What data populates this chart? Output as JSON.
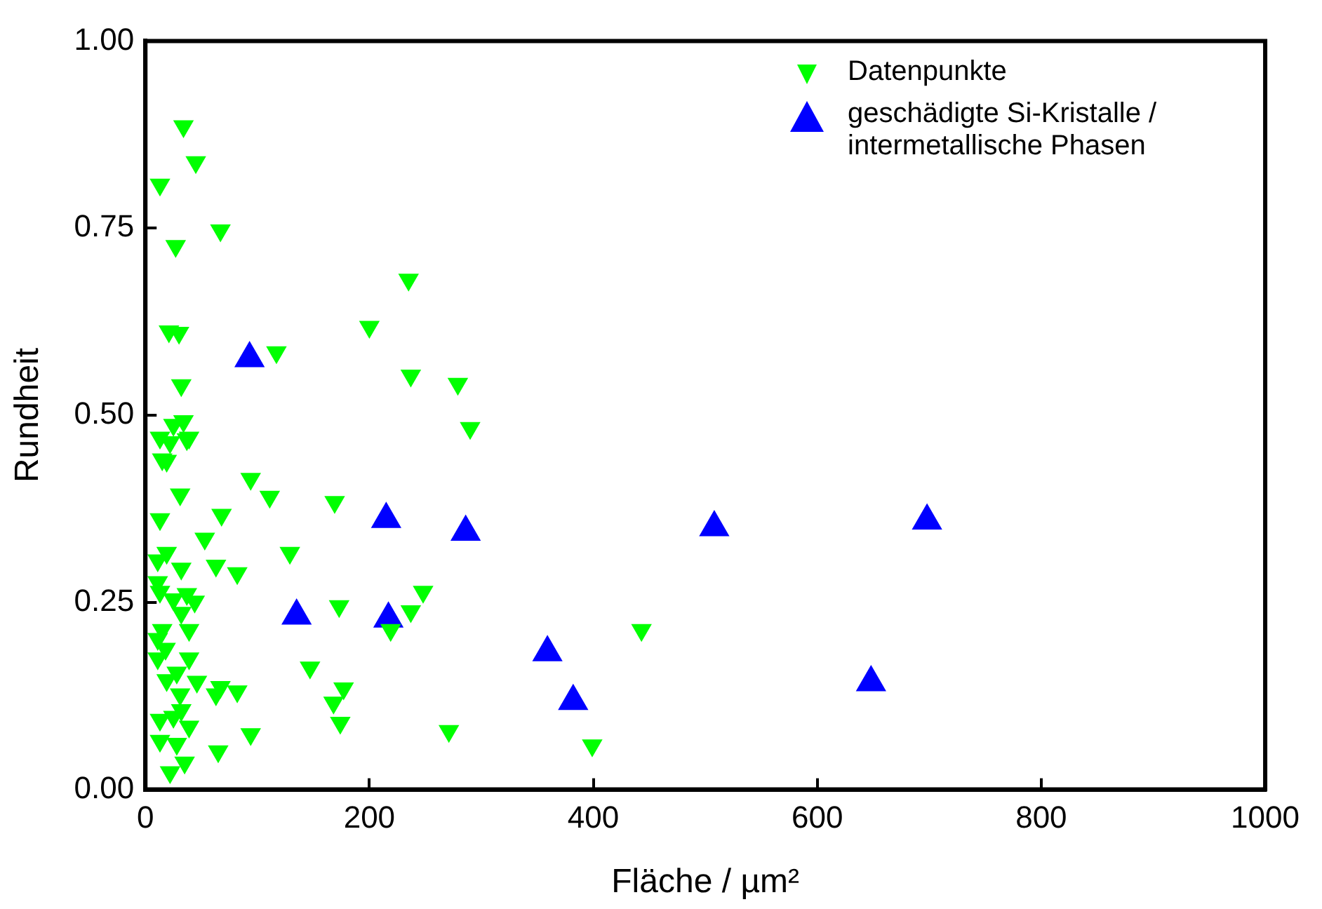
{
  "chart_data": {
    "type": "scatter",
    "xlabel": "Fläche / µm²",
    "ylabel": "Rundheit",
    "xlim": [
      0,
      1000
    ],
    "ylim": [
      0,
      1
    ],
    "xticks": [
      0,
      200,
      400,
      600,
      800,
      1000
    ],
    "yticks": [
      {
        "value": 0,
        "label": "0.00"
      },
      {
        "value": 0.25,
        "label": "0.25"
      },
      {
        "value": 0.5,
        "label": "0.50"
      },
      {
        "value": 0.75,
        "label": "0.75"
      },
      {
        "value": 1,
        "label": "1.00"
      }
    ],
    "grid": false,
    "legend": "top right",
    "marker": "triangle",
    "series": [
      {
        "name": "Datenpunkte",
        "color": "#00ff00",
        "x": [
          34,
          45,
          13,
          67,
          27,
          235,
          21,
          30,
          200,
          117,
          32,
          237,
          279,
          290,
          34,
          25,
          13,
          39,
          22,
          37,
          19,
          15,
          94,
          31,
          111,
          169,
          13,
          68,
          53,
          129,
          19,
          11,
          32,
          63,
          82,
          11,
          13,
          37,
          25,
          44,
          32,
          173,
          248,
          237,
          219,
          15,
          39,
          11,
          18,
          11,
          39,
          147,
          28,
          19,
          46,
          67,
          82,
          177,
          63,
          31,
          168,
          32,
          13,
          25,
          39,
          174,
          94,
          271,
          13,
          28,
          65,
          35,
          22,
          443,
          399
        ],
        "values": [
          0.886,
          0.838,
          0.808,
          0.747,
          0.726,
          0.681,
          0.612,
          0.61,
          0.618,
          0.584,
          0.54,
          0.553,
          0.542,
          0.483,
          0.492,
          0.487,
          0.47,
          0.47,
          0.464,
          0.468,
          0.439,
          0.441,
          0.415,
          0.394,
          0.391,
          0.384,
          0.361,
          0.367,
          0.335,
          0.316,
          0.316,
          0.306,
          0.295,
          0.299,
          0.289,
          0.277,
          0.264,
          0.261,
          0.254,
          0.251,
          0.236,
          0.245,
          0.264,
          0.238,
          0.213,
          0.213,
          0.213,
          0.201,
          0.188,
          0.175,
          0.175,
          0.163,
          0.156,
          0.146,
          0.144,
          0.137,
          0.131,
          0.135,
          0.127,
          0.127,
          0.116,
          0.106,
          0.093,
          0.097,
          0.084,
          0.089,
          0.074,
          0.078,
          0.065,
          0.061,
          0.051,
          0.036,
          0.023,
          0.213,
          0.059
        ]
      },
      {
        "name": "geschädigte Si-Kristalle / intermetallische Phasen",
        "color": "#0000ff",
        "x": [
          93,
          215,
          286,
          135,
          217,
          508,
          698,
          359,
          382,
          648
        ],
        "values": [
          0.576,
          0.361,
          0.344,
          0.232,
          0.228,
          0.35,
          0.359,
          0.183,
          0.118,
          0.143
        ]
      }
    ]
  }
}
